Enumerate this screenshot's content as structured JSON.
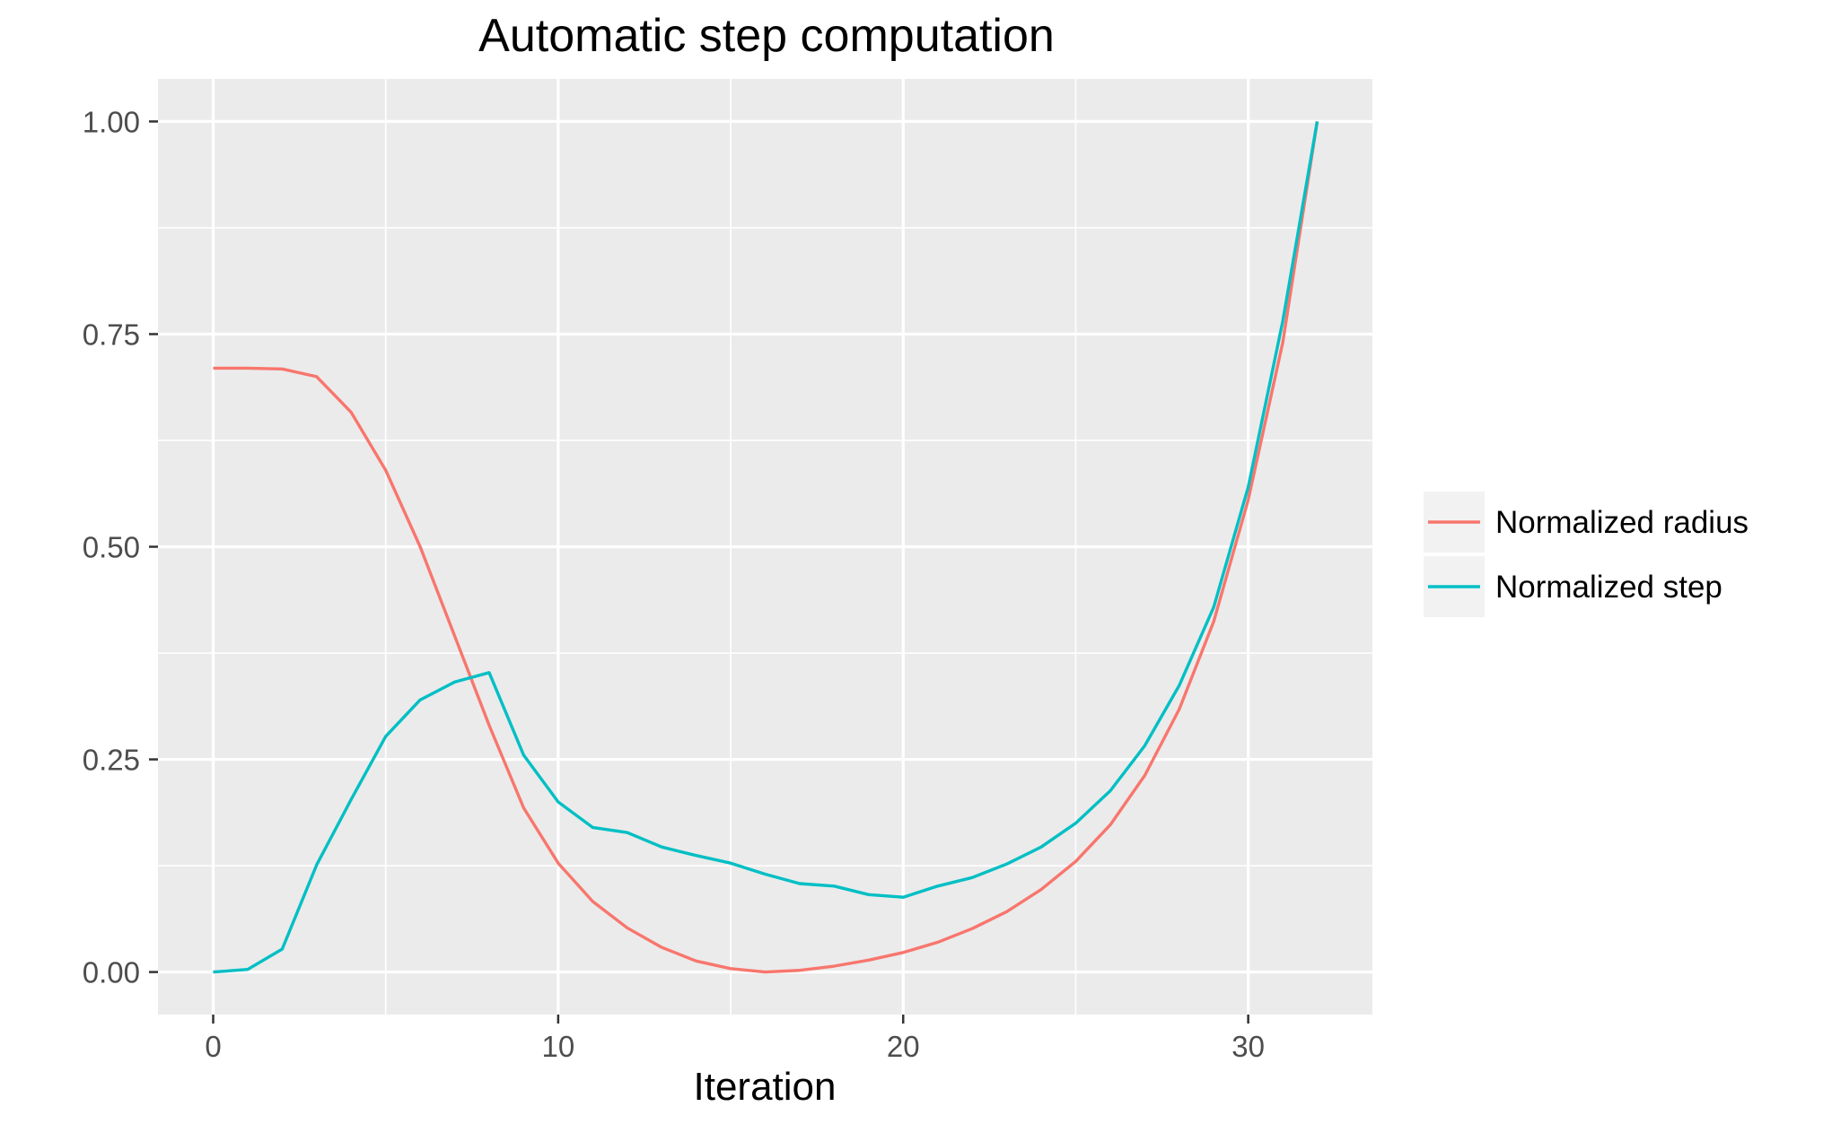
{
  "chart_data": {
    "type": "line",
    "title": "Automatic step computation",
    "xlabel": "Iteration",
    "ylabel": "",
    "xlim": [
      -1.6,
      33.6
    ],
    "ylim": [
      -0.05,
      1.05
    ],
    "x_ticks": [
      0,
      10,
      20,
      30
    ],
    "x_tick_labels": [
      "0",
      "10",
      "20",
      "30"
    ],
    "x_minor_ticks": [
      5,
      15,
      25
    ],
    "y_ticks": [
      0,
      0.25,
      0.5,
      0.75,
      1.0
    ],
    "y_tick_labels": [
      "0.00",
      "0.25",
      "0.50",
      "0.75",
      "1.00"
    ],
    "y_minor_ticks": [
      0.125,
      0.375,
      0.625,
      0.875
    ],
    "grid": true,
    "legend_position": "right",
    "x": [
      0,
      1,
      2,
      3,
      4,
      5,
      6,
      7,
      8,
      9,
      10,
      11,
      12,
      13,
      14,
      15,
      16,
      17,
      18,
      19,
      20,
      21,
      22,
      23,
      24,
      25,
      26,
      27,
      28,
      29,
      30,
      31,
      32
    ],
    "series": [
      {
        "name": "Normalized radius",
        "color": "#F8766D",
        "values": [
          0.71,
          0.71,
          0.709,
          0.7,
          0.658,
          0.59,
          0.5,
          0.395,
          0.29,
          0.193,
          0.128,
          0.083,
          0.052,
          0.029,
          0.013,
          0.004,
          0.0,
          0.002,
          0.007,
          0.014,
          0.023,
          0.035,
          0.051,
          0.071,
          0.097,
          0.13,
          0.173,
          0.231,
          0.309,
          0.412,
          0.555,
          0.74,
          1.0
        ]
      },
      {
        "name": "Normalized step",
        "color": "#00BFC4",
        "values": [
          0.0,
          0.003,
          0.027,
          0.126,
          0.203,
          0.277,
          0.32,
          0.341,
          0.352,
          0.255,
          0.2,
          0.17,
          0.164,
          0.147,
          0.137,
          0.128,
          0.115,
          0.104,
          0.101,
          0.091,
          0.088,
          0.101,
          0.111,
          0.127,
          0.147,
          0.175,
          0.213,
          0.266,
          0.337,
          0.429,
          0.57,
          0.765,
          1.0
        ]
      }
    ]
  }
}
